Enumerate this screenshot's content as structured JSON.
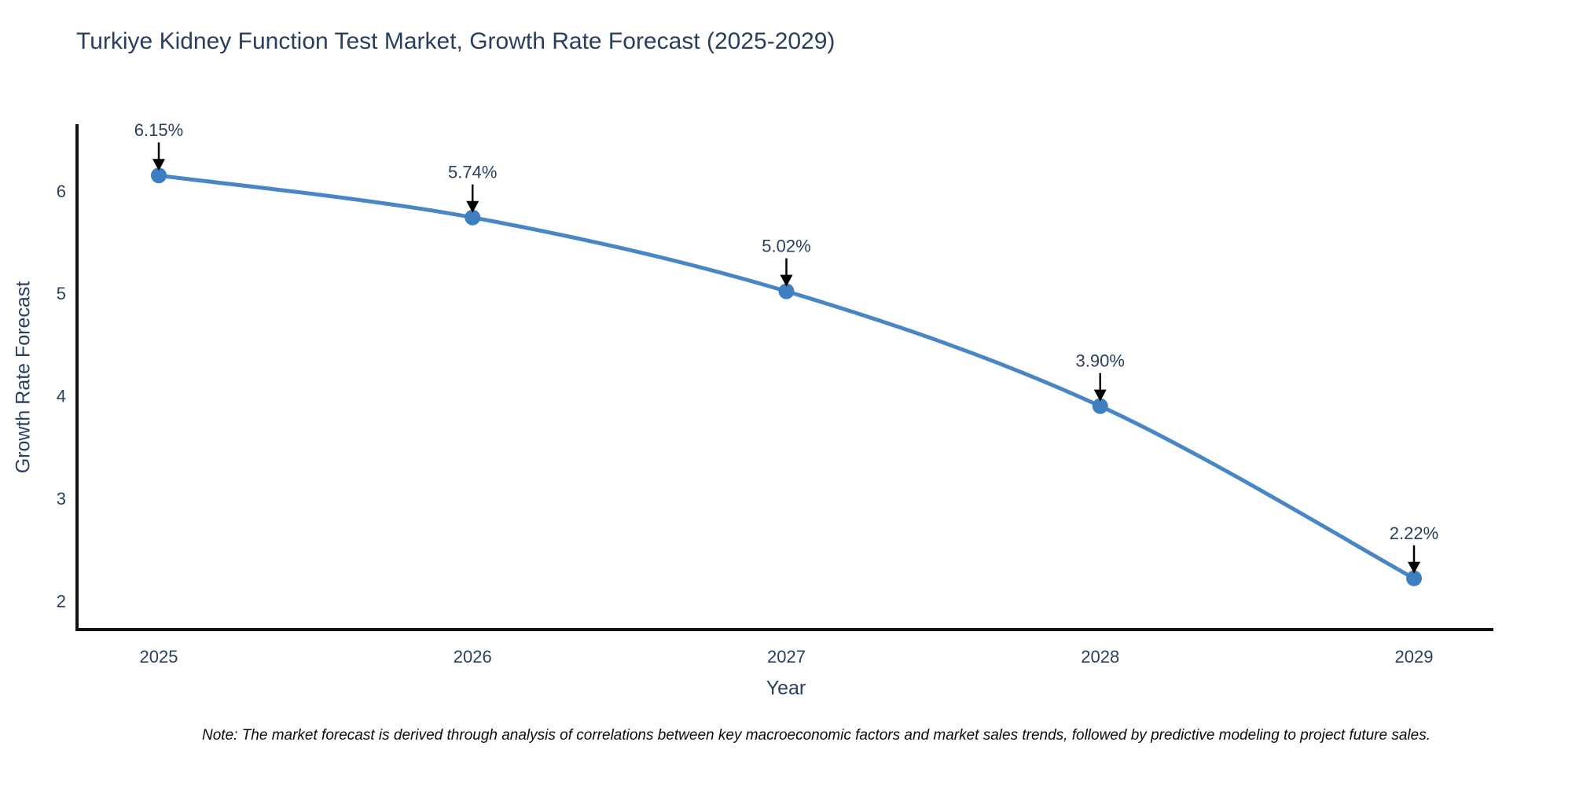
{
  "figure": {
    "title": "Turkiye Kidney Function Test Market, Growth Rate Forecast (2025-2029)",
    "note": "Note: The market forecast is derived through analysis of correlations between key macroeconomic factors and market sales trends, followed by predictive modeling to project future sales."
  },
  "chart_data": {
    "type": "line",
    "title": "Turkiye Kidney Function Test Market, Growth Rate Forecast (2025-2029)",
    "categories": [
      "2025",
      "2026",
      "2027",
      "2028",
      "2029"
    ],
    "values": [
      6.15,
      5.74,
      5.02,
      3.9,
      2.22
    ],
    "point_labels": [
      "6.15%",
      "5.74%",
      "5.02%",
      "3.90%",
      "2.22%"
    ],
    "series_name": "Growth Rate Forecast",
    "xlabel": "Year",
    "ylabel": "Growth Rate Forecast",
    "yticks": [
      2,
      3,
      4,
      5,
      6
    ],
    "ylim": [
      1.72,
      6.65
    ],
    "grid": false,
    "legend": "none",
    "line_shape": "spline",
    "annotations": "value labels with downward arrows above each point",
    "colors": {
      "line": "#3e7fc1",
      "marker": "#3e7fc1",
      "arrow": "#000000",
      "text": "#2a3f5f",
      "spine": "#111111",
      "background": "#ffffff"
    }
  }
}
